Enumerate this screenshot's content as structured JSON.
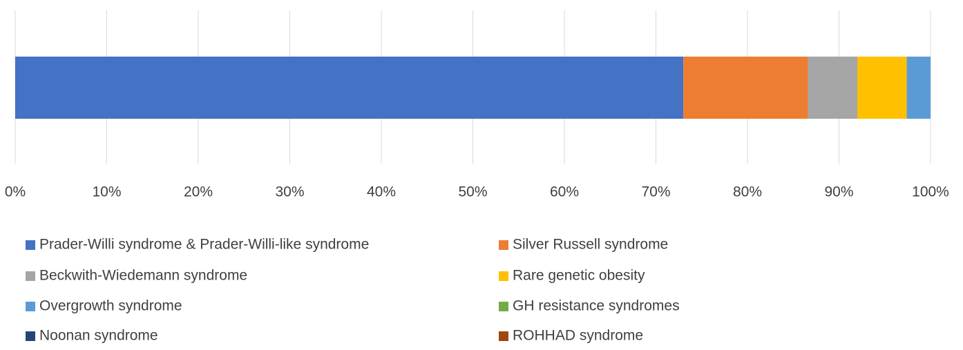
{
  "chart_data": {
    "type": "bar",
    "orientation": "horizontal",
    "stacked": true,
    "categories": [
      null
    ],
    "series": [
      {
        "name": "Prader-Willi syndrome & Prader-Willi-like syndrome",
        "color": "#4472c4",
        "values": [
          73.0
        ]
      },
      {
        "name": "Silver Russell syndrome",
        "color": "#ed7d31",
        "values": [
          13.6
        ]
      },
      {
        "name": "Beckwith-Wiedemann syndrome",
        "color": "#a5a5a5",
        "values": [
          5.4
        ]
      },
      {
        "name": "Rare genetic obesity",
        "color": "#ffc000",
        "values": [
          5.4
        ]
      },
      {
        "name": "Overgrowth syndrome",
        "color": "#5b9bd5",
        "values": [
          2.6
        ]
      },
      {
        "name": "GH resistance syndromes",
        "color": "#70ad47",
        "values": [
          0
        ]
      },
      {
        "name": "Noonan syndrome",
        "color": "#264478",
        "values": [
          0
        ]
      },
      {
        "name": "ROHHAD syndrome",
        "color": "#9e480e",
        "values": [
          0
        ]
      }
    ],
    "xlim": [
      0,
      100
    ],
    "xticks": [
      {
        "value": 0,
        "label": "0%"
      },
      {
        "value": 10,
        "label": "10%"
      },
      {
        "value": 20,
        "label": "20%"
      },
      {
        "value": 30,
        "label": "30%"
      },
      {
        "value": 40,
        "label": "40%"
      },
      {
        "value": 50,
        "label": "50%"
      },
      {
        "value": 60,
        "label": "60%"
      },
      {
        "value": 70,
        "label": "70%"
      },
      {
        "value": 80,
        "label": "80%"
      },
      {
        "value": 90,
        "label": "90%"
      },
      {
        "value": 100,
        "label": "100%"
      }
    ],
    "grid": true,
    "legend": "bottom"
  }
}
